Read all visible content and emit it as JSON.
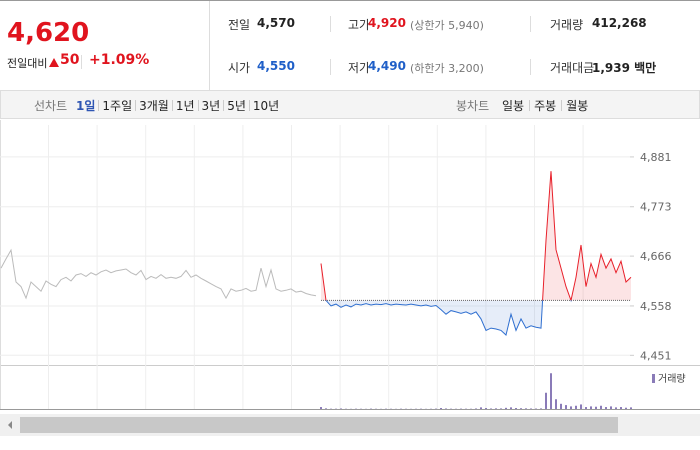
{
  "header": {
    "price": "4,620",
    "change_label": "전일대비",
    "change": "50",
    "change_pct": "+1.09%"
  },
  "stats": [
    {
      "label": "전일",
      "value": "4,570"
    },
    {
      "label": "고가",
      "value": "4,920",
      "note": "(상한가 5,940)"
    },
    {
      "label": "거래량",
      "value": "412,268"
    },
    {
      "label": "시가",
      "value": "4,550"
    },
    {
      "label": "저가",
      "value": "4,490",
      "note": "(하한가 3,200)"
    },
    {
      "label": "거래대금",
      "value": "1,939 백만"
    }
  ],
  "tabs": {
    "line_label": "선차트",
    "line_periods": [
      "1일",
      "1주일",
      "3개월",
      "1년",
      "3년",
      "5년",
      "10년"
    ],
    "candle_label": "봉차트",
    "candle_periods": [
      "일봉",
      "주봉",
      "월봉"
    ]
  },
  "chart_data": {
    "type": "line",
    "ylim": [
      4430,
      4935
    ],
    "yticks": [
      {
        "value": 4881,
        "label": "4,881"
      },
      {
        "value": 4773,
        "label": "4,773"
      },
      {
        "value": 4666,
        "label": "4,666"
      },
      {
        "value": 4558,
        "label": "4,558"
      },
      {
        "value": 4451,
        "label": "4,451"
      }
    ],
    "grid": true,
    "baseline": 4570,
    "series": [
      {
        "color": "#bbbbbb",
        "values": [
          4640,
          4660,
          4679,
          4610,
          4600,
          4575,
          4610,
          4600,
          4590,
          4612,
          4605,
          4600,
          4615,
          4620,
          4612,
          4625,
          4628,
          4622,
          4630,
          4625,
          4632,
          4636,
          4630,
          4634,
          4636,
          4638,
          4630,
          4625,
          4635,
          4615,
          4622,
          4618,
          4626,
          4618,
          4620,
          4618,
          4622,
          4635,
          4620,
          4625,
          4618,
          4612,
          4606,
          4600,
          4595,
          4575,
          4595,
          4590,
          4592,
          4596,
          4590,
          4592,
          4640,
          4600,
          4636,
          4595,
          4590,
          4592,
          4595,
          4588,
          4590,
          4585,
          4582,
          4580
        ]
      },
      {
        "color_up": "#e8202a",
        "color_down": "#2f6fd0",
        "values": [
          4650,
          4570,
          4558,
          4562,
          4555,
          4560,
          4556,
          4562,
          4560,
          4563,
          4560,
          4562,
          4561,
          4563,
          4560,
          4562,
          4561,
          4560,
          4562,
          4560,
          4558,
          4560,
          4557,
          4559,
          4550,
          4540,
          4548,
          4545,
          4542,
          4545,
          4540,
          4545,
          4530,
          4505,
          4510,
          4508,
          4505,
          4495,
          4540,
          4505,
          4530,
          4510,
          4515,
          4512,
          4510,
          4700,
          4850,
          4680,
          4640,
          4600,
          4570,
          4620,
          4690,
          4600,
          4650,
          4620,
          4670,
          4640,
          4660,
          4630,
          4655,
          4610,
          4620
        ]
      }
    ],
    "volume": {
      "name": "거래량",
      "color": "#8a7bb8",
      "ylim": [
        0,
        60000
      ],
      "values": [
        3000,
        1000,
        500,
        500,
        800,
        400,
        300,
        500,
        400,
        300,
        600,
        400,
        300,
        500,
        400,
        300,
        500,
        400,
        300,
        400,
        500,
        300,
        400,
        600,
        1500,
        800,
        500,
        400,
        600,
        500,
        400,
        800,
        2500,
        1500,
        800,
        1000,
        900,
        1800,
        2500,
        1500,
        1200,
        1000,
        800,
        700,
        900,
        25000,
        55000,
        15000,
        8000,
        6000,
        4000,
        5000,
        7000,
        3000,
        4000,
        3500,
        5000,
        3000,
        4000,
        2500,
        3000,
        2000,
        2500
      ]
    }
  }
}
